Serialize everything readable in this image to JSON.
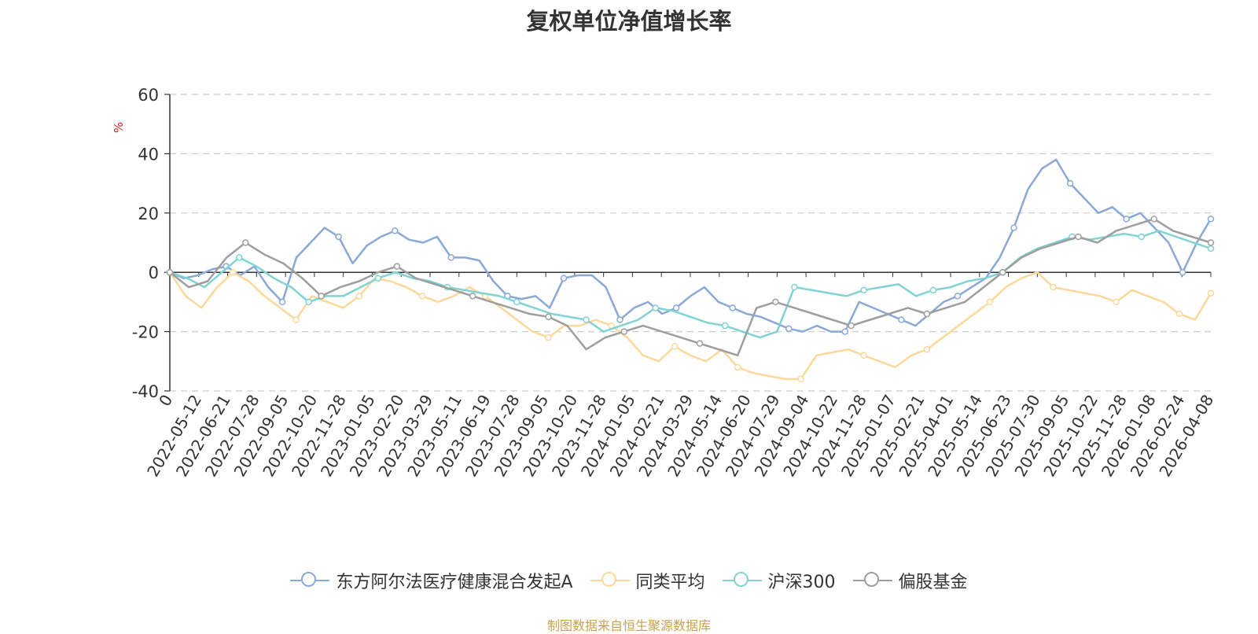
{
  "chart_data": {
    "type": "line",
    "title": "复权单位净值增长率",
    "ylabel": "%",
    "ylim": [
      -40,
      60
    ],
    "yticks": [
      "60",
      "40",
      "20",
      "0",
      "-20",
      "-40"
    ],
    "x_tick_labels": [
      "0",
      "2022-05-12",
      "2022-06-21",
      "2022-07-28",
      "2022-09-05",
      "2022-10-20",
      "2022-11-28",
      "2023-01-05",
      "2023-02-20",
      "2023-03-29",
      "2023-05-11",
      "2023-06-19",
      "2023-07-28",
      "2023-09-05",
      "2023-10-20",
      "2023-11-28",
      "2024-01-05",
      "2024-02-21",
      "2024-03-29",
      "2024-05-14",
      "2024-06-20",
      "2024-07-29",
      "2024-09-04",
      "2024-10-22",
      "2024-11-28",
      "2025-01-07",
      "2025-02-21",
      "2025-04-01",
      "2025-05-14",
      "2025-06-23",
      "2025-07-30",
      "2025-09-05",
      "2025-10-22",
      "2025-11-28",
      "2026-01-08",
      "2026-02-24",
      "2026-04-08"
    ],
    "grid": true,
    "legend_position": "bottom",
    "series": [
      {
        "name": "东方阿尔法医疗健康混合发起A",
        "color": "#8aa9d6",
        "values": [
          0,
          -2,
          -1,
          1,
          2,
          -1,
          2,
          -5,
          -10,
          5,
          10,
          15,
          12,
          3,
          9,
          12,
          14,
          11,
          10,
          12,
          5,
          5,
          4,
          -3,
          -8,
          -9,
          -8,
          -12,
          -2,
          -1,
          -1,
          -5,
          -16,
          -12,
          -10,
          -14,
          -12,
          -8,
          -5,
          -10,
          -12,
          -14,
          -15,
          -17,
          -19,
          -20,
          -18,
          -20,
          -20,
          -10,
          -12,
          -14,
          -16,
          -18,
          -14,
          -10,
          -8,
          -5,
          -2,
          5,
          15,
          28,
          35,
          38,
          30,
          25,
          20,
          22,
          18,
          20,
          15,
          10,
          0,
          10,
          18
        ]
      },
      {
        "name": "同类平均",
        "color": "#fdd89a",
        "values": [
          0,
          -8,
          -12,
          -5,
          0,
          -3,
          -8,
          -12,
          -16,
          -8,
          -10,
          -12,
          -8,
          -2,
          -3,
          -5,
          -8,
          -10,
          -8,
          -5,
          -8,
          -12,
          -16,
          -20,
          -22,
          -18,
          -18,
          -16,
          -18,
          -22,
          -28,
          -30,
          -25,
          -28,
          -30,
          -26,
          -32,
          -34,
          -35,
          -36,
          -36,
          -28,
          -27,
          -26,
          -28,
          -30,
          -32,
          -28,
          -26,
          -22,
          -18,
          -14,
          -10,
          -5,
          -2,
          0,
          -5,
          -6,
          -7,
          -8,
          -10,
          -6,
          -8,
          -10,
          -14,
          -16,
          -7
        ]
      },
      {
        "name": "沪深300",
        "color": "#7fd3d3",
        "values": [
          0,
          -2,
          -5,
          0,
          5,
          2,
          -2,
          -5,
          -10,
          -8,
          -8,
          -5,
          -2,
          0,
          -2,
          -3,
          -5,
          -6,
          -7,
          -8,
          -10,
          -12,
          -14,
          -15,
          -16,
          -20,
          -18,
          -16,
          -12,
          -13,
          -15,
          -17,
          -18,
          -20,
          -22,
          -20,
          -5,
          -6,
          -7,
          -8,
          -6,
          -5,
          -4,
          -8,
          -6,
          -5,
          -3,
          -2,
          0,
          5,
          8,
          10,
          12,
          11,
          12,
          13,
          12,
          14,
          12,
          10,
          8
        ]
      },
      {
        "name": "偏股基金",
        "color": "#9e9e9e",
        "values": [
          0,
          -5,
          -3,
          5,
          10,
          6,
          3,
          -2,
          -8,
          -5,
          -3,
          0,
          2,
          -2,
          -4,
          -6,
          -8,
          -10,
          -12,
          -14,
          -15,
          -18,
          -26,
          -22,
          -20,
          -18,
          -20,
          -22,
          -24,
          -26,
          -28,
          -12,
          -10,
          -12,
          -14,
          -16,
          -18,
          -16,
          -14,
          -12,
          -14,
          -12,
          -10,
          -5,
          0,
          5,
          8,
          10,
          12,
          10,
          14,
          16,
          18,
          14,
          12,
          10
        ]
      }
    ]
  },
  "legend": [
    {
      "label": "东方阿尔法医疗健康混合发起A",
      "color": "#8aa9d6"
    },
    {
      "label": "同类平均",
      "color": "#fdd89a"
    },
    {
      "label": "沪深300",
      "color": "#7fd3d3"
    },
    {
      "label": "偏股基金",
      "color": "#9e9e9e"
    }
  ],
  "source_text": "制图数据来自恒生聚源数据库"
}
